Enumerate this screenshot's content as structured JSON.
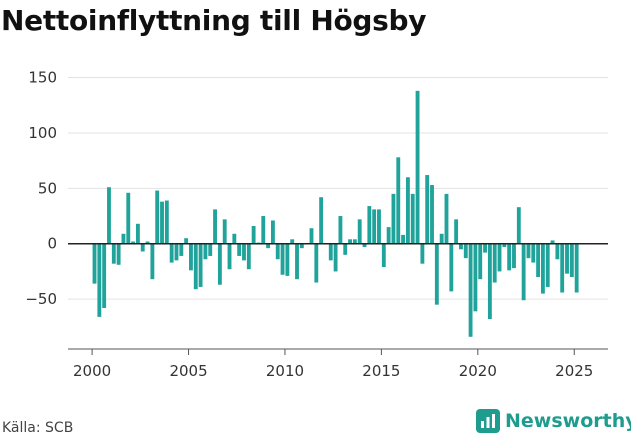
{
  "title": "Nettoinflyttning till Högsby",
  "source": "Källa: SCB",
  "brand": "Newsworthy",
  "colors": {
    "bar": "#20a39a",
    "grid": "#e3e3e3",
    "zero": "#222222",
    "brand": "#1e9c8e"
  },
  "chart_data": {
    "type": "bar",
    "title": "Nettoinflyttning till Högsby",
    "xlabel": "",
    "ylabel": "",
    "xlim": [
      1998.75,
      2026.75
    ],
    "ylim": [
      -95,
      155
    ],
    "yticks": [
      150,
      100,
      50,
      0,
      -50
    ],
    "xticks": [
      2000,
      2005,
      2010,
      2015,
      2020,
      2025
    ],
    "grid": "horizontal",
    "x": [
      2000.125,
      2000.375,
      2000.625,
      2000.875,
      2001.125,
      2001.375,
      2001.625,
      2001.875,
      2002.125,
      2002.375,
      2002.625,
      2002.875,
      2003.125,
      2003.375,
      2003.625,
      2003.875,
      2004.125,
      2004.375,
      2004.625,
      2004.875,
      2005.125,
      2005.375,
      2005.625,
      2005.875,
      2006.125,
      2006.375,
      2006.625,
      2006.875,
      2007.125,
      2007.375,
      2007.625,
      2007.875,
      2008.125,
      2008.375,
      2008.625,
      2008.875,
      2009.125,
      2009.375,
      2009.625,
      2009.875,
      2010.125,
      2010.375,
      2010.625,
      2010.875,
      2011.125,
      2011.375,
      2011.625,
      2011.875,
      2012.125,
      2012.375,
      2012.625,
      2012.875,
      2013.125,
      2013.375,
      2013.625,
      2013.875,
      2014.125,
      2014.375,
      2014.625,
      2014.875,
      2015.125,
      2015.375,
      2015.625,
      2015.875,
      2016.125,
      2016.375,
      2016.625,
      2016.875,
      2017.125,
      2017.375,
      2017.625,
      2017.875,
      2018.125,
      2018.375,
      2018.625,
      2018.875,
      2019.125,
      2019.375,
      2019.625,
      2019.875,
      2020.125,
      2020.375,
      2020.625,
      2020.875,
      2021.125,
      2021.375,
      2021.625,
      2021.875,
      2022.125,
      2022.375,
      2022.625,
      2022.875,
      2023.125,
      2023.375,
      2023.625,
      2023.875,
      2024.125,
      2024.375,
      2024.625,
      2024.875,
      2025.125,
      2025.375
    ],
    "values": [
      -36,
      -66,
      -58,
      51,
      -18,
      -19,
      9,
      46,
      2,
      18,
      -7,
      2,
      -32,
      48,
      38,
      39,
      -17,
      -15,
      -11,
      5,
      -24,
      -41,
      -39,
      -14,
      -11,
      31,
      -37,
      22,
      -23,
      9,
      -11,
      -15,
      -23,
      16,
      1,
      25,
      -4,
      21,
      -14,
      -28,
      -29,
      4,
      -32,
      -4,
      0,
      14,
      -35,
      42,
      0,
      -15,
      -25,
      25,
      -10,
      4,
      4,
      22,
      -3,
      34,
      31,
      31,
      -21,
      15,
      45,
      78,
      8,
      60,
      45,
      138,
      -18,
      62,
      53,
      -55,
      9,
      45,
      -43,
      22,
      -5,
      -13,
      -84,
      -61,
      -32,
      -8,
      -68,
      -35,
      -25,
      -3,
      -24,
      -22,
      33,
      -51,
      -13,
      -17,
      -30,
      -45,
      -39,
      3,
      -14,
      -44,
      -27,
      -30,
      -44,
      0
    ]
  }
}
